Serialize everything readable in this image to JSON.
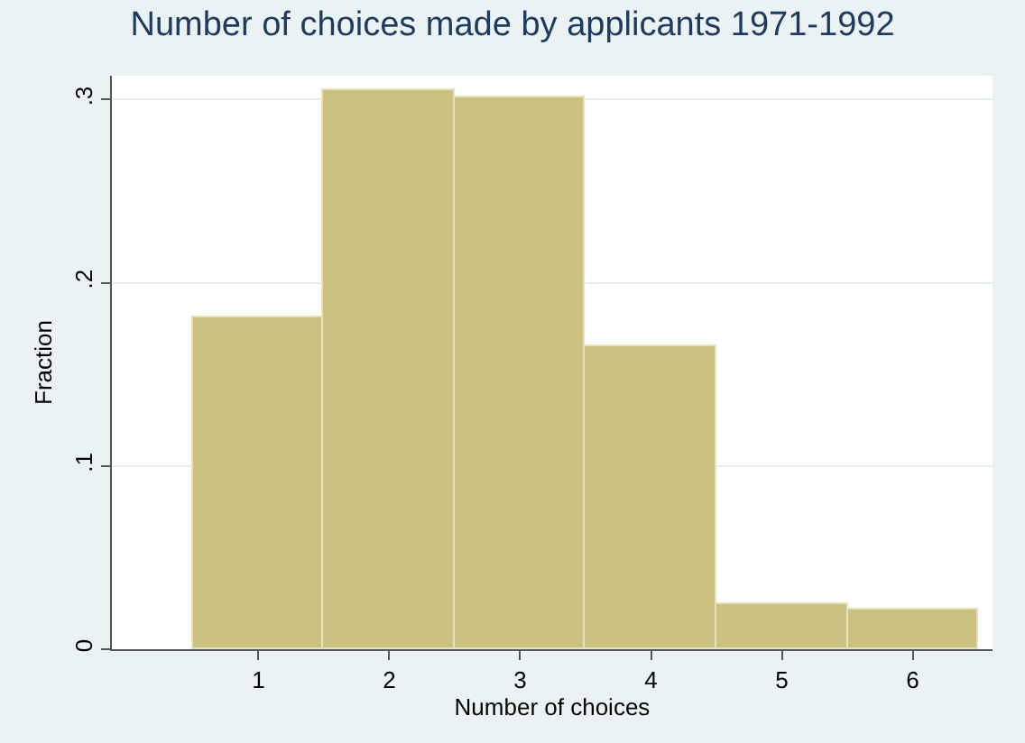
{
  "chart_data": {
    "type": "histogram",
    "title": "Number of choices made by applicants 1971-1992",
    "xlabel": "Number of choices",
    "ylabel": "Fraction",
    "bins": [
      0.5,
      1.5,
      2.5,
      3.5,
      4.5,
      5.5,
      6.5
    ],
    "values": [
      0.181,
      0.305,
      0.301,
      0.165,
      0.025,
      0.022
    ],
    "color": "#cbc281",
    "xlim": [
      -0.12,
      6.61
    ],
    "xticks": [
      1,
      2,
      3,
      4,
      5,
      6
    ],
    "ylim": [
      0,
      0.313
    ],
    "yticks": [
      {
        "value": 0,
        "label": "0"
      },
      {
        "value": 0.1,
        "label": ".1"
      },
      {
        "value": 0.2,
        "label": ".2"
      },
      {
        "value": 0.3,
        "label": ".3"
      }
    ],
    "grid": "y"
  }
}
